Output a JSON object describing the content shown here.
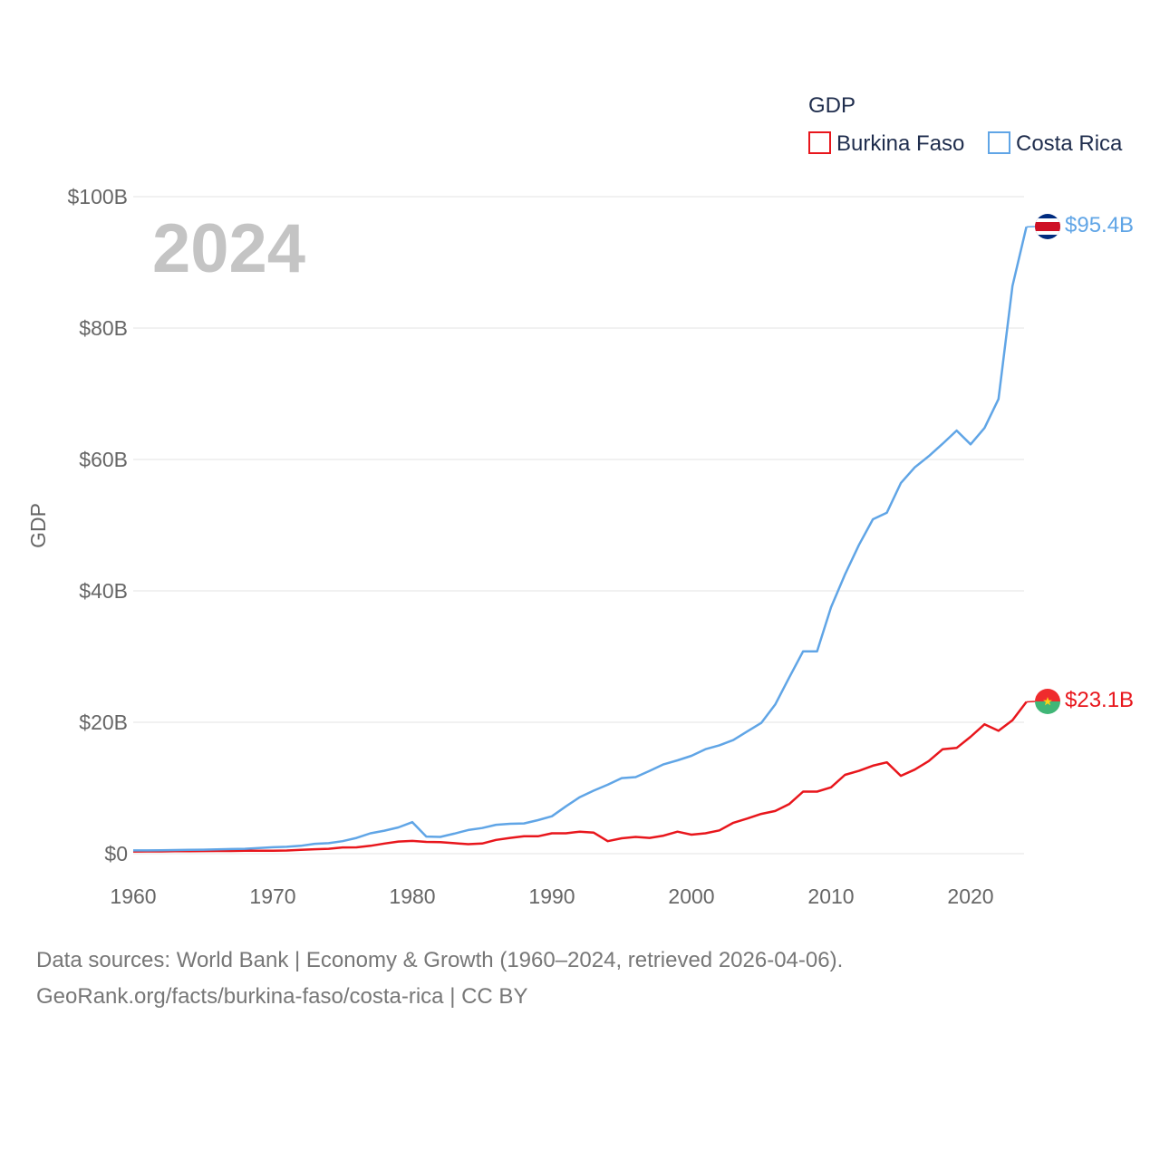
{
  "chart_data": {
    "type": "line",
    "title": "",
    "legend_title": "GDP",
    "legend_position": "top-right",
    "year_label": "2024",
    "ylabel": "GDP",
    "xlabel": "",
    "xlim": [
      1960,
      2025
    ],
    "ylim": [
      0,
      100
    ],
    "x_ticks": [
      1960,
      1970,
      1980,
      1990,
      2000,
      2010,
      2020
    ],
    "x_tick_labels": [
      "1960",
      "1970",
      "1980",
      "1990",
      "2000",
      "2010",
      "2020"
    ],
    "y_ticks": [
      0,
      20,
      40,
      60,
      80,
      100
    ],
    "y_tick_labels": [
      "$0",
      "$20B",
      "$40B",
      "$60B",
      "$80B",
      "$100B"
    ],
    "grid": true,
    "x": [
      1960,
      1961,
      1962,
      1963,
      1964,
      1965,
      1966,
      1967,
      1968,
      1969,
      1970,
      1971,
      1972,
      1973,
      1974,
      1975,
      1976,
      1977,
      1978,
      1979,
      1980,
      1981,
      1982,
      1983,
      1984,
      1985,
      1986,
      1987,
      1988,
      1989,
      1990,
      1991,
      1992,
      1993,
      1994,
      1995,
      1996,
      1997,
      1998,
      1999,
      2000,
      2001,
      2002,
      2003,
      2004,
      2005,
      2006,
      2007,
      2008,
      2009,
      2010,
      2011,
      2012,
      2013,
      2014,
      2015,
      2016,
      2017,
      2018,
      2019,
      2020,
      2021,
      2022,
      2023,
      2024
    ],
    "series": [
      {
        "name": "Burkina Faso",
        "color": "#e8161c",
        "end_label": "$23.1B",
        "values": [
          0.33,
          0.34,
          0.35,
          0.37,
          0.38,
          0.4,
          0.41,
          0.42,
          0.44,
          0.45,
          0.46,
          0.48,
          0.58,
          0.68,
          0.75,
          0.95,
          0.97,
          1.2,
          1.55,
          1.85,
          1.95,
          1.8,
          1.75,
          1.6,
          1.45,
          1.55,
          2.1,
          2.4,
          2.65,
          2.65,
          3.1,
          3.1,
          3.35,
          3.2,
          1.9,
          2.35,
          2.55,
          2.4,
          2.75,
          3.35,
          2.9,
          3.1,
          3.55,
          4.7,
          5.35,
          6.05,
          6.5,
          7.55,
          9.45,
          9.45,
          10.1,
          12.0,
          12.6,
          13.4,
          13.9,
          11.85,
          12.8,
          14.1,
          15.9,
          16.1,
          17.8,
          19.7,
          18.7,
          20.3,
          23.1
        ]
      },
      {
        "name": "Costa Rica",
        "color": "#60a5e6",
        "end_label": "$95.4B",
        "values": [
          0.5,
          0.5,
          0.52,
          0.55,
          0.58,
          0.6,
          0.65,
          0.7,
          0.75,
          0.85,
          0.98,
          1.05,
          1.2,
          1.5,
          1.6,
          1.9,
          2.4,
          3.1,
          3.5,
          4.0,
          4.8,
          2.6,
          2.55,
          3.05,
          3.6,
          3.9,
          4.4,
          4.55,
          4.6,
          5.1,
          5.7,
          7.2,
          8.6,
          9.6,
          10.5,
          11.5,
          11.65,
          12.6,
          13.6,
          14.2,
          14.9,
          15.9,
          16.5,
          17.3,
          18.6,
          19.9,
          22.7,
          26.8,
          30.8,
          30.8,
          37.5,
          42.5,
          47.0,
          50.9,
          51.9,
          56.4,
          58.8,
          60.5,
          62.4,
          64.4,
          62.3,
          64.8,
          69.2,
          86.4,
          95.4
        ]
      }
    ],
    "source_lines": [
      "Data sources: World Bank | Economy & Growth (1960–2024, retrieved 2026-04-06).",
      "GeoRank.org/facts/burkina-faso/costa-rica | CC BY"
    ]
  }
}
